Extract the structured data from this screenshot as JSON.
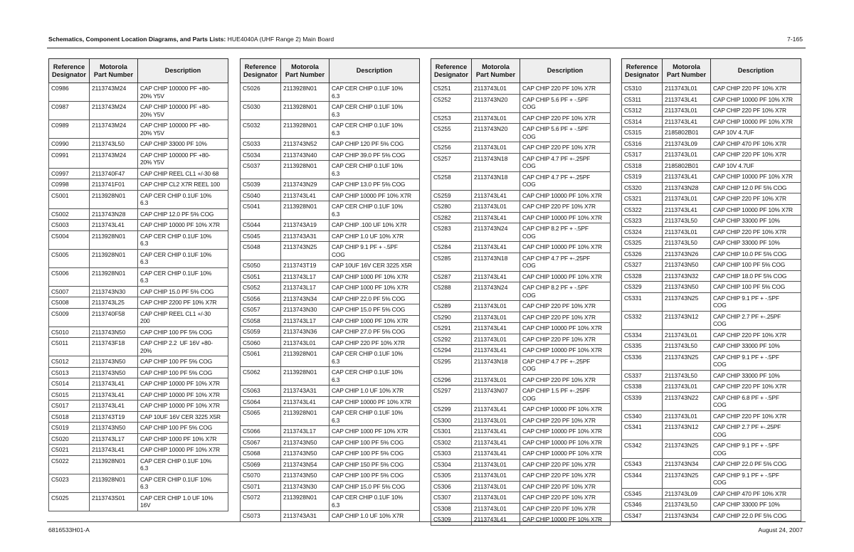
{
  "header": {
    "title_bold": "Schematics, Component Location Diagrams, and Parts Lists:",
    "title_rest": "HUE4040A (UHF Range 2) Main Board",
    "page": "7-165"
  },
  "footer": {
    "doc_number": "6816533H01-A",
    "date": "August 24, 2007"
  },
  "columns": {
    "ref": "Reference\nDesignator",
    "part": "Motorola\nPart Number",
    "desc": "Description"
  },
  "tables": [
    {
      "rows": [
        [
          "C0986",
          "2113743M24",
          "CAP CHIP 100000 PF +80-\n20% Y5V"
        ],
        [
          "C0987",
          "2113743M24",
          "CAP CHIP 100000 PF +80-\n20% Y5V"
        ],
        [
          "C0989",
          "2113743M24",
          "CAP CHIP 100000 PF +80-\n20% Y5V"
        ],
        [
          "C0990",
          "2113743L50",
          "CAP CHIP 33000 PF 10%"
        ],
        [
          "C0991",
          "2113743M24",
          "CAP CHIP 100000 PF +80-\n20% Y5V"
        ],
        [
          "C0997",
          "2113740F47",
          "CAP CHIP REEL CL1 +/-30 68"
        ],
        [
          "C0998",
          "2113741F01",
          "CAP CHIP CL2 X7R REEL 100"
        ],
        [
          "C5001",
          "2113928N01",
          "CAP CER CHIP 0.1UF 10%\n6.3"
        ],
        [
          "C5002",
          "2113743N28",
          "CAP CHIP 12.0 PF 5% COG"
        ],
        [
          "C5003",
          "2113743L41",
          "CAP CHIP 10000 PF 10% X7R"
        ],
        [
          "C5004",
          "2113928N01",
          "CAP CER CHIP 0.1UF 10%\n6.3"
        ],
        [
          "C5005",
          "2113928N01",
          "CAP CER CHIP 0.1UF 10%\n6.3"
        ],
        [
          "C5006",
          "2113928N01",
          "CAP CER CHIP 0.1UF 10%\n6.3"
        ],
        [
          "C5007",
          "2113743N30",
          "CAP CHIP 15.0 PF 5% COG"
        ],
        [
          "C5008",
          "2113743L25",
          "CAP CHIP 2200 PF 10% X7R"
        ],
        [
          "C5009",
          "2113740F58",
          "CAP CHIP REEL CL1 +/-30\n200"
        ],
        [
          "C5010",
          "2113743N50",
          "CAP CHIP 100 PF 5% COG"
        ],
        [
          "C5011",
          "2113743F18",
          "CAP CHIP 2.2  UF 16V +80-\n20%"
        ],
        [
          "C5012",
          "2113743N50",
          "CAP CHIP 100 PF 5% COG"
        ],
        [
          "C5013",
          "2113743N50",
          "CAP CHIP 100 PF 5% COG"
        ],
        [
          "C5014",
          "2113743L41",
          "CAP CHIP 10000 PF 10% X7R"
        ],
        [
          "C5015",
          "2113743L41",
          "CAP CHIP 10000 PF 10% X7R"
        ],
        [
          "C5017",
          "2113743L41",
          "CAP CHIP 10000 PF 10% X7R"
        ],
        [
          "C5018",
          "2113743T19",
          "CAP 10UF 16V CER 3225 X5R"
        ],
        [
          "C5019",
          "2113743N50",
          "CAP CHIP 100 PF 5% COG"
        ],
        [
          "C5020",
          "2113743L17",
          "CAP CHIP 1000 PF 10% X7R"
        ],
        [
          "C5021",
          "2113743L41",
          "CAP CHIP 10000 PF 10% X7R"
        ],
        [
          "C5022",
          "2113928N01",
          "CAP CER CHIP 0.1UF 10%\n6.3"
        ],
        [
          "C5023",
          "2113928N01",
          "CAP CER CHIP 0.1UF 10%\n6.3"
        ],
        [
          "C5025",
          "2113743S01",
          "CAP CER CHIP 1.0 UF 10%\n16V"
        ]
      ]
    },
    {
      "rows": [
        [
          "C5026",
          "2113928N01",
          "CAP CER CHIP 0.1UF 10%\n6.3"
        ],
        [
          "C5030",
          "2113928N01",
          "CAP CER CHIP 0.1UF 10%\n6.3"
        ],
        [
          "C5032",
          "2113928N01",
          "CAP CER CHIP 0.1UF 10%\n6.3"
        ],
        [
          "C5033",
          "2113743N52",
          "CAP CHIP 120 PF 5% COG"
        ],
        [
          "C5034",
          "2113743N40",
          "CAP CHIP 39.0 PF 5% COG"
        ],
        [
          "C5037",
          "2113928N01",
          "CAP CER CHIP 0.1UF 10%\n6.3"
        ],
        [
          "C5039",
          "2113743N29",
          "CAP CHIP 13.0 PF 5% COG"
        ],
        [
          "C5040",
          "2113743L41",
          "CAP CHIP 10000 PF 10% X7R"
        ],
        [
          "C5041",
          "2113928N01",
          "CAP CER CHIP 0.1UF 10%\n6.3"
        ],
        [
          "C5044",
          "2113743A19",
          "CAP CHIP .100 UF 10% X7R"
        ],
        [
          "C5045",
          "2113743A31",
          "CAP CHIP 1.0 UF 10% X7R"
        ],
        [
          "C5048",
          "2113743N25",
          "CAP CHIP 9.1 PF + -.5PF\nCOG"
        ],
        [
          "C5050",
          "2113743T19",
          "CAP 10UF 16V CER 3225 X5R"
        ],
        [
          "C5051",
          "2113743L17",
          "CAP CHIP 1000 PF 10% X7R"
        ],
        [
          "C5052",
          "2113743L17",
          "CAP CHIP 1000 PF 10% X7R"
        ],
        [
          "C5056",
          "2113743N34",
          "CAP CHIP 22.0 PF 5% COG"
        ],
        [
          "C5057",
          "2113743N30",
          "CAP CHIP 15.0 PF 5% COG"
        ],
        [
          "C5058",
          "2113743L17",
          "CAP CHIP 1000 PF 10% X7R"
        ],
        [
          "C5059",
          "2113743N36",
          "CAP CHIP 27.0 PF 5% COG"
        ],
        [
          "C5060",
          "2113743L01",
          "CAP CHIP 220 PF 10% X7R"
        ],
        [
          "C5061",
          "2113928N01",
          "CAP CER CHIP 0.1UF 10%\n6.3"
        ],
        [
          "C5062",
          "2113928N01",
          "CAP CER CHIP 0.1UF 10%\n6.3"
        ],
        [
          "C5063",
          "2113743A31",
          "CAP CHIP 1.0 UF 10% X7R"
        ],
        [
          "C5064",
          "2113743L41",
          "CAP CHIP 10000 PF 10% X7R"
        ],
        [
          "C5065",
          "2113928N01",
          "CAP CER CHIP 0.1UF 10%\n6.3"
        ],
        [
          "C5066",
          "2113743L17",
          "CAP CHIP 1000 PF 10% X7R"
        ],
        [
          "C5067",
          "2113743N50",
          "CAP CHIP 100 PF 5% COG"
        ],
        [
          "C5068",
          "2113743N50",
          "CAP CHIP 100 PF 5% COG"
        ],
        [
          "C5069",
          "2113743N54",
          "CAP CHIP 150 PF 5% COG"
        ],
        [
          "C5070",
          "2113743N50",
          "CAP CHIP 100 PF 5% COG"
        ],
        [
          "C5071",
          "2113743N30",
          "CAP CHIP 15.0 PF 5% COG"
        ],
        [
          "C5072",
          "2113928N01",
          "CAP CER CHIP 0.1UF 10%\n6.3"
        ],
        [
          "C5073",
          "2113743A31",
          "CAP CHIP 1.0 UF 10% X7R"
        ]
      ]
    },
    {
      "rows": [
        [
          "C5251",
          "2113743L01",
          "CAP CHIP 220 PF 10% X7R"
        ],
        [
          "C5252",
          "2113743N20",
          "CAP CHIP 5.6 PF + -.5PF\nCOG"
        ],
        [
          "C5253",
          "2113743L01",
          "CAP CHIP 220 PF 10% X7R"
        ],
        [
          "C5255",
          "2113743N20",
          "CAP CHIP 5.6 PF + -.5PF\nCOG"
        ],
        [
          "C5256",
          "2113743L01",
          "CAP CHIP 220 PF 10% X7R"
        ],
        [
          "C5257",
          "2113743N18",
          "CAP CHIP 4.7 PF +-.25PF\nCOG"
        ],
        [
          "C5258",
          "2113743N18",
          "CAP CHIP 4.7 PF +-.25PF\nCOG"
        ],
        [
          "C5259",
          "2113743L41",
          "CAP CHIP 10000 PF 10% X7R"
        ],
        [
          "C5280",
          "2113743L01",
          "CAP CHIP 220 PF 10% X7R"
        ],
        [
          "C5282",
          "2113743L41",
          "CAP CHIP 10000 PF 10% X7R"
        ],
        [
          "C5283",
          "2113743N24",
          "CAP CHIP 8.2 PF + -.5PF\nCOG"
        ],
        [
          "C5284",
          "2113743L41",
          "CAP CHIP 10000 PF 10% X7R"
        ],
        [
          "C5285",
          "2113743N18",
          "CAP CHIP 4.7 PF +-.25PF\nCOG"
        ],
        [
          "C5287",
          "2113743L41",
          "CAP CHIP 10000 PF 10% X7R"
        ],
        [
          "C5288",
          "2113743N24",
          "CAP CHIP 8.2 PF + -.5PF\nCOG"
        ],
        [
          "C5289",
          "2113743L01",
          "CAP CHIP 220 PF 10% X7R"
        ],
        [
          "C5290",
          "2113743L01",
          "CAP CHIP 220 PF 10% X7R"
        ],
        [
          "C5291",
          "2113743L41",
          "CAP CHIP 10000 PF 10% X7R"
        ],
        [
          "C5292",
          "2113743L01",
          "CAP CHIP 220 PF 10% X7R"
        ],
        [
          "C5294",
          "2113743L41",
          "CAP CHIP 10000 PF 10% X7R"
        ],
        [
          "C5295",
          "2113743N18",
          "CAP CHIP 4.7 PF +-.25PF\nCOG"
        ],
        [
          "C5296",
          "2113743L01",
          "CAP CHIP 220 PF 10% X7R"
        ],
        [
          "C5297",
          "2113743N07",
          "CAP CHIP 1.5 PF +-.25PF\nCOG"
        ],
        [
          "C5299",
          "2113743L41",
          "CAP CHIP 10000 PF 10% X7R"
        ],
        [
          "C5300",
          "2113743L01",
          "CAP CHIP 220 PF 10% X7R"
        ],
        [
          "C5301",
          "2113743L41",
          "CAP CHIP 10000 PF 10% X7R"
        ],
        [
          "C5302",
          "2113743L41",
          "CAP CHIP 10000 PF 10% X7R"
        ],
        [
          "C5303",
          "2113743L41",
          "CAP CHIP 10000 PF 10% X7R"
        ],
        [
          "C5304",
          "2113743L01",
          "CAP CHIP 220 PF 10% X7R"
        ],
        [
          "C5305",
          "2113743L01",
          "CAP CHIP 220 PF 10% X7R"
        ],
        [
          "C5306",
          "2113743L01",
          "CAP CHIP 220 PF 10% X7R"
        ],
        [
          "C5307",
          "2113743L01",
          "CAP CHIP 220 PF 10% X7R"
        ],
        [
          "C5308",
          "2113743L01",
          "CAP CHIP 220 PF 10% X7R"
        ],
        [
          "C5309",
          "2113743L41",
          "CAP CHIP 10000 PF 10% X7R"
        ]
      ]
    },
    {
      "rows": [
        [
          "C5310",
          "2113743L01",
          "CAP CHIP 220 PF 10% X7R"
        ],
        [
          "C5311",
          "2113743L41",
          "CAP CHIP 10000 PF 10% X7R"
        ],
        [
          "C5312",
          "2113743L01",
          "CAP CHIP 220 PF 10% X7R"
        ],
        [
          "C5314",
          "2113743L41",
          "CAP CHIP 10000 PF 10% X7R"
        ],
        [
          "C5315",
          "2185802B01",
          "CAP 10V 4.7UF"
        ],
        [
          "C5316",
          "2113743L09",
          "CAP CHIP 470 PF 10% X7R"
        ],
        [
          "C5317",
          "2113743L01",
          "CAP CHIP 220 PF 10% X7R"
        ],
        [
          "C5318",
          "2185802B01",
          "CAP 10V 4.7UF"
        ],
        [
          "C5319",
          "2113743L41",
          "CAP CHIP 10000 PF 10% X7R"
        ],
        [
          "C5320",
          "2113743N28",
          "CAP CHIP 12.0 PF 5% COG"
        ],
        [
          "C5321",
          "2113743L01",
          "CAP CHIP 220 PF 10% X7R"
        ],
        [
          "C5322",
          "2113743L41",
          "CAP CHIP 10000 PF 10% X7R"
        ],
        [
          "C5323",
          "2113743L50",
          "CAP CHIP 33000 PF 10%"
        ],
        [
          "C5324",
          "2113743L01",
          "CAP CHIP 220 PF 10% X7R"
        ],
        [
          "C5325",
          "2113743L50",
          "CAP CHIP 33000 PF 10%"
        ],
        [
          "C5326",
          "2113743N26",
          "CAP CHIP 10.0 PF 5% COG"
        ],
        [
          "C5327",
          "2113743N50",
          "CAP CHIP 100 PF 5% COG"
        ],
        [
          "C5328",
          "2113743N32",
          "CAP CHIP 18.0 PF 5% COG"
        ],
        [
          "C5329",
          "2113743N50",
          "CAP CHIP 100 PF 5% COG"
        ],
        [
          "C5331",
          "2113743N25",
          "CAP CHIP 9.1 PF + -.5PF\nCOG"
        ],
        [
          "C5332",
          "2113743N12",
          "CAP CHIP 2.7 PF +-.25PF\nCOG"
        ],
        [
          "C5334",
          "2113743L01",
          "CAP CHIP 220 PF 10% X7R"
        ],
        [
          "C5335",
          "2113743L50",
          "CAP CHIP 33000 PF 10%"
        ],
        [
          "C5336",
          "2113743N25",
          "CAP CHIP 9.1 PF + -.5PF\nCOG"
        ],
        [
          "C5337",
          "2113743L50",
          "CAP CHIP 33000 PF 10%"
        ],
        [
          "C5338",
          "2113743L01",
          "CAP CHIP 220 PF 10% X7R"
        ],
        [
          "C5339",
          "2113743N22",
          "CAP CHIP 6.8 PF + -.5PF\nCOG"
        ],
        [
          "C5340",
          "2113743L01",
          "CAP CHIP 220 PF 10% X7R"
        ],
        [
          "C5341",
          "2113743N12",
          "CAP CHIP 2.7 PF +-.25PF\nCOG"
        ],
        [
          "C5342",
          "2113743N25",
          "CAP CHIP 9.1 PF + -.5PF\nCOG"
        ],
        [
          "C5343",
          "2113743N34",
          "CAP CHIP 22.0 PF 5% COG"
        ],
        [
          "C5344",
          "2113743N25",
          "CAP CHIP 9.1 PF + -.5PF\nCOG"
        ],
        [
          "C5345",
          "2113743L09",
          "CAP CHIP 470 PF 10% X7R"
        ],
        [
          "C5346",
          "2113743L50",
          "CAP CHIP 33000 PF 10%"
        ],
        [
          "C5347",
          "2113743N34",
          "CAP CHIP 22.0 PF 5% COG"
        ]
      ]
    }
  ]
}
